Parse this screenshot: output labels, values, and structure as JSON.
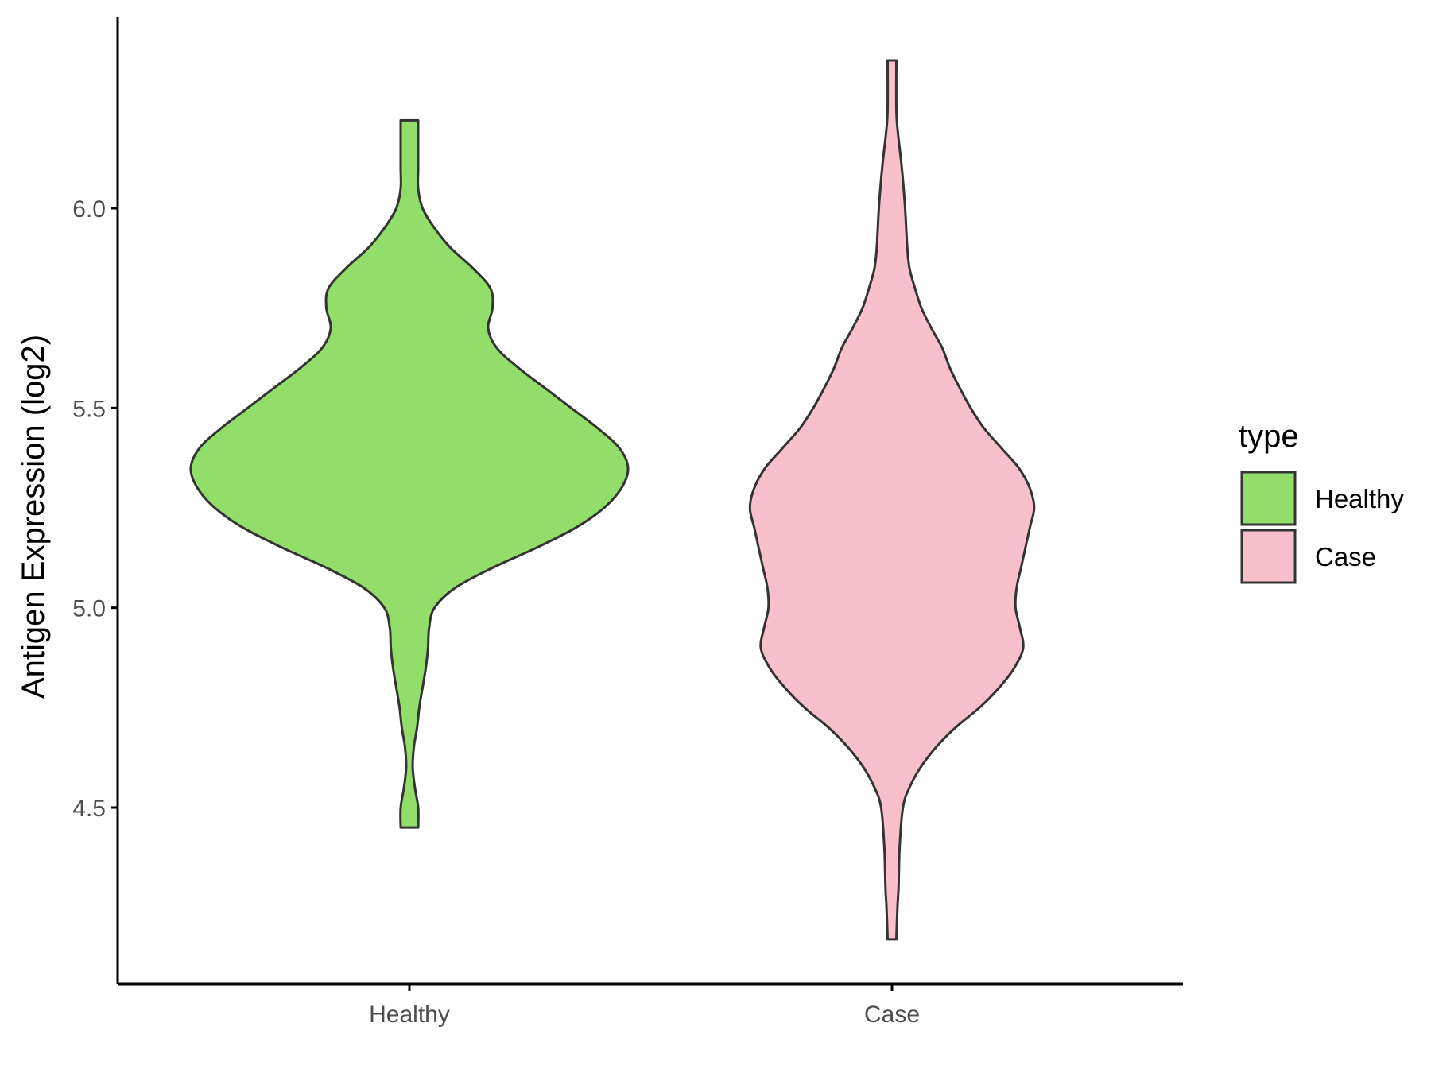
{
  "chart_data": {
    "type": "violin",
    "ylabel": "Antigen Expression (log2)",
    "xlabel": "",
    "categories": [
      "Healthy",
      "Case"
    ],
    "y_ticks": [
      "4.5",
      "5.0",
      "5.5",
      "6.0"
    ],
    "y_tick_values": [
      4.5,
      5.0,
      5.5,
      6.0
    ],
    "ylim": [
      4.05,
      6.47
    ],
    "legend": {
      "title": "type",
      "position": "right",
      "entries": [
        {
          "label": "Healthy",
          "color": "#93dd6b"
        },
        {
          "label": "Case",
          "color": "#f7c0cb"
        }
      ]
    },
    "series": [
      {
        "category": "Healthy",
        "color": "#93dd6b",
        "min": 4.45,
        "max": 6.22,
        "density_profile": [
          [
            4.45,
            0.04
          ],
          [
            4.5,
            0.04
          ],
          [
            4.55,
            0.025
          ],
          [
            4.6,
            0.015
          ],
          [
            4.65,
            0.02
          ],
          [
            4.7,
            0.035
          ],
          [
            4.75,
            0.045
          ],
          [
            4.8,
            0.06
          ],
          [
            4.85,
            0.075
          ],
          [
            4.9,
            0.085
          ],
          [
            4.95,
            0.09
          ],
          [
            5.0,
            0.115
          ],
          [
            5.05,
            0.21
          ],
          [
            5.1,
            0.38
          ],
          [
            5.15,
            0.58
          ],
          [
            5.2,
            0.76
          ],
          [
            5.25,
            0.89
          ],
          [
            5.3,
            0.97
          ],
          [
            5.35,
            1.0
          ],
          [
            5.4,
            0.96
          ],
          [
            5.45,
            0.86
          ],
          [
            5.5,
            0.74
          ],
          [
            5.55,
            0.62
          ],
          [
            5.6,
            0.5
          ],
          [
            5.65,
            0.4
          ],
          [
            5.7,
            0.36
          ],
          [
            5.75,
            0.38
          ],
          [
            5.8,
            0.37
          ],
          [
            5.85,
            0.29
          ],
          [
            5.9,
            0.19
          ],
          [
            5.95,
            0.115
          ],
          [
            6.0,
            0.06
          ],
          [
            6.05,
            0.04
          ],
          [
            6.1,
            0.04
          ],
          [
            6.15,
            0.04
          ],
          [
            6.22,
            0.04
          ]
        ]
      },
      {
        "category": "Case",
        "color": "#f7c0cb",
        "min": 4.17,
        "max": 6.37,
        "density_profile": [
          [
            4.17,
            0.02
          ],
          [
            4.25,
            0.025
          ],
          [
            4.3,
            0.03
          ],
          [
            4.4,
            0.035
          ],
          [
            4.5,
            0.05
          ],
          [
            4.55,
            0.08
          ],
          [
            4.6,
            0.13
          ],
          [
            4.65,
            0.2
          ],
          [
            4.7,
            0.29
          ],
          [
            4.75,
            0.4
          ],
          [
            4.8,
            0.49
          ],
          [
            4.85,
            0.56
          ],
          [
            4.9,
            0.6
          ],
          [
            4.95,
            0.585
          ],
          [
            5.0,
            0.565
          ],
          [
            5.05,
            0.57
          ],
          [
            5.1,
            0.59
          ],
          [
            5.15,
            0.61
          ],
          [
            5.2,
            0.63
          ],
          [
            5.25,
            0.65
          ],
          [
            5.3,
            0.63
          ],
          [
            5.35,
            0.58
          ],
          [
            5.4,
            0.5
          ],
          [
            5.45,
            0.42
          ],
          [
            5.5,
            0.36
          ],
          [
            5.55,
            0.31
          ],
          [
            5.6,
            0.265
          ],
          [
            5.65,
            0.23
          ],
          [
            5.7,
            0.18
          ],
          [
            5.75,
            0.135
          ],
          [
            5.8,
            0.105
          ],
          [
            5.85,
            0.08
          ],
          [
            5.9,
            0.07
          ],
          [
            6.0,
            0.06
          ],
          [
            6.1,
            0.045
          ],
          [
            6.2,
            0.025
          ],
          [
            6.25,
            0.02
          ],
          [
            6.37,
            0.02
          ]
        ]
      }
    ]
  }
}
